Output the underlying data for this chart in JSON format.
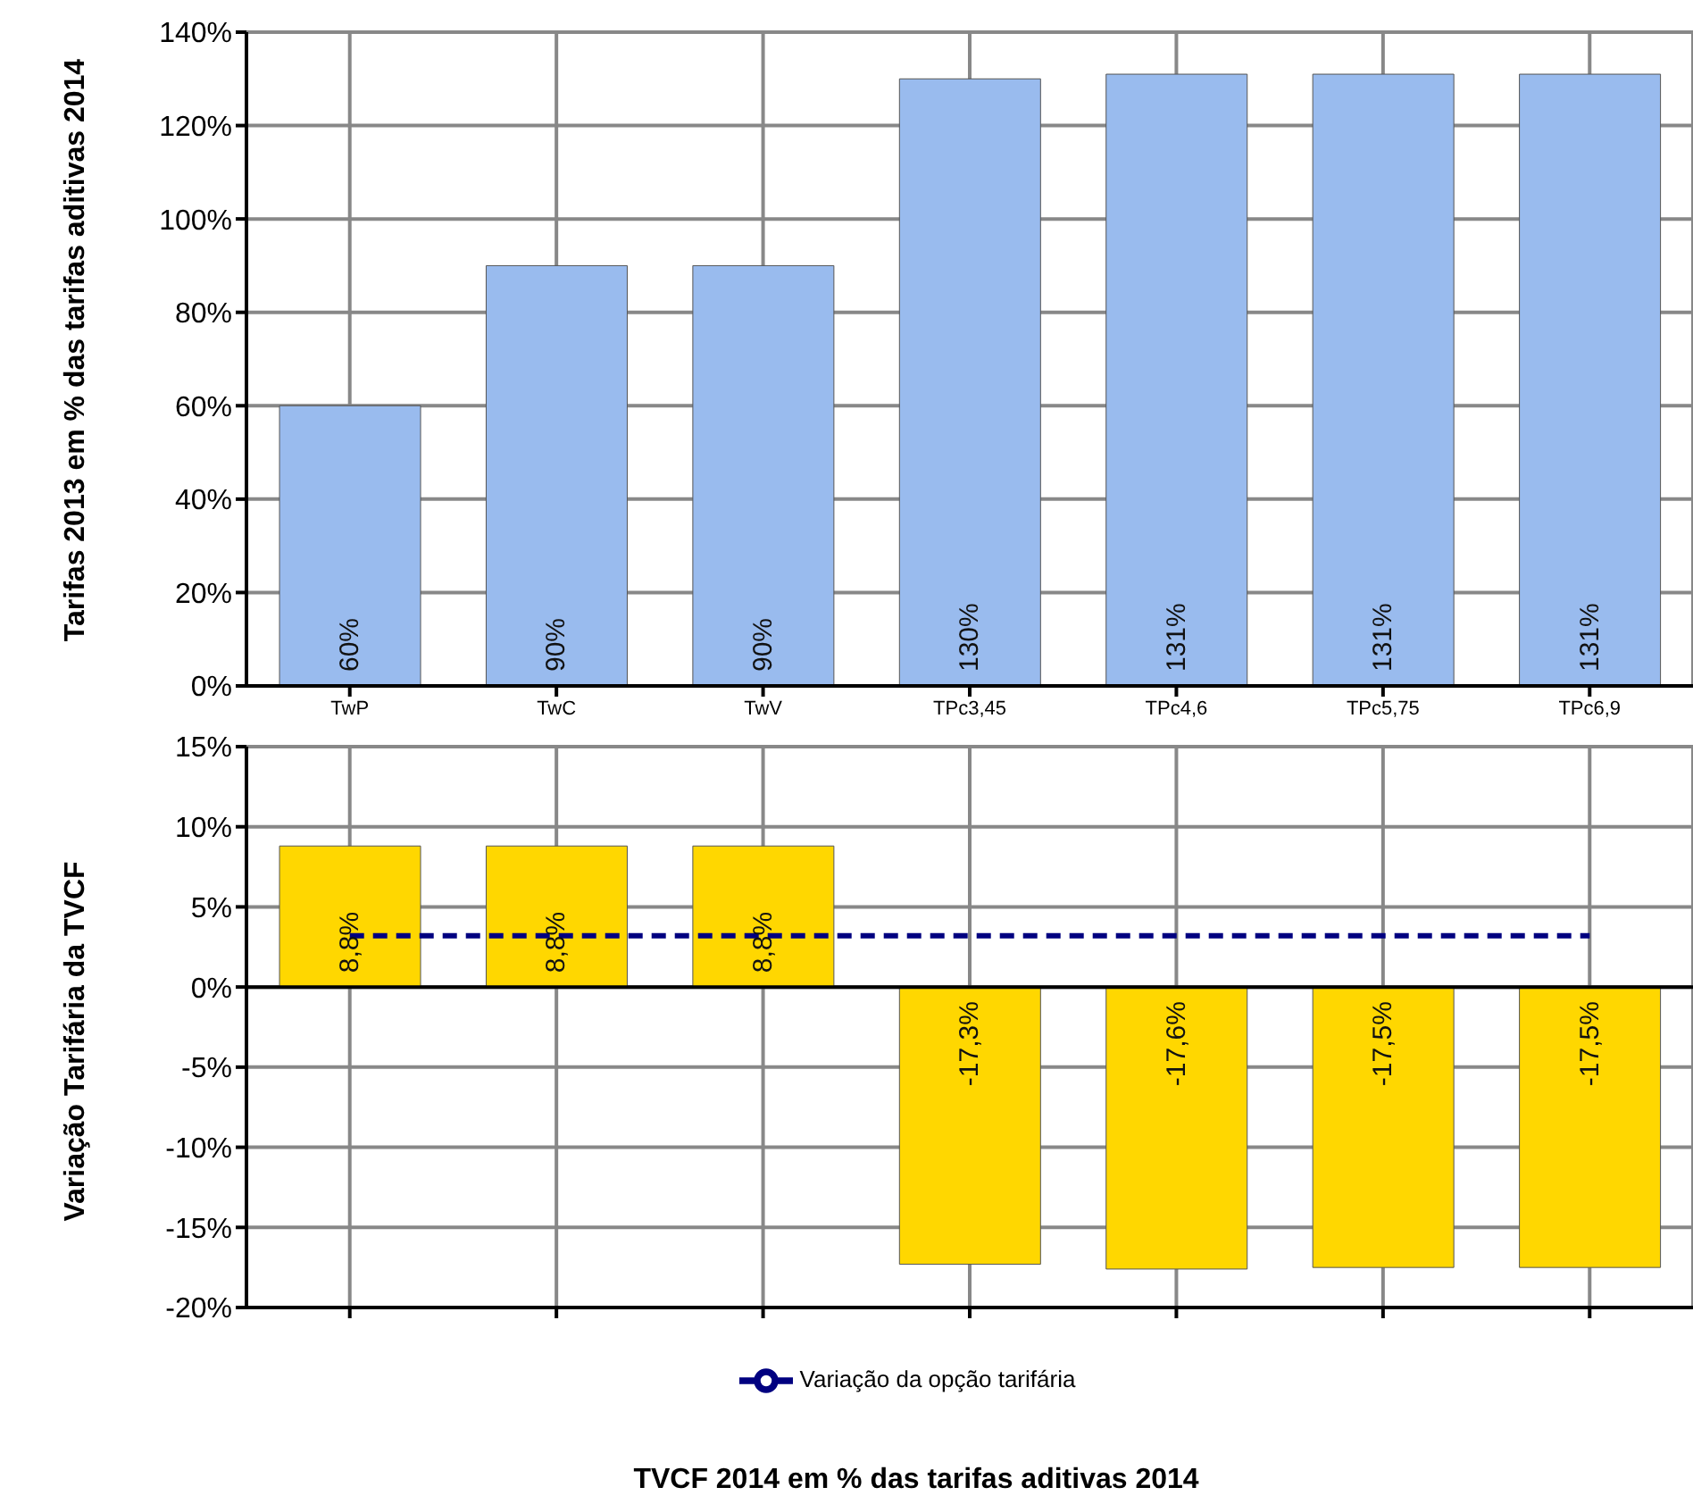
{
  "chart_data": [
    {
      "type": "bar",
      "ylabel": "Tarifas 2013 em % das tarifas aditivas 2014",
      "categories": [
        "TwP",
        "TwC",
        "TwV",
        "TPc3,45",
        "TPc4,6",
        "TPc5,75",
        "TPc6,9"
      ],
      "series": [
        {
          "color": "#99bbee",
          "values": [
            60,
            90,
            90,
            130,
            131,
            131,
            131
          ],
          "value_labels": [
            "60%",
            "90%",
            "90%",
            "130%",
            "131%",
            "131%",
            "131%"
          ]
        }
      ],
      "ylim": [
        0,
        140
      ],
      "yticks": [
        {
          "value": 0,
          "label": "0%"
        },
        {
          "value": 20,
          "label": "20%"
        },
        {
          "value": 40,
          "label": "40%"
        },
        {
          "value": 60,
          "label": "60%"
        },
        {
          "value": 80,
          "label": "80%"
        },
        {
          "value": 100,
          "label": "100%"
        },
        {
          "value": 120,
          "label": "120%"
        },
        {
          "value": 140,
          "label": "140%"
        }
      ],
      "grid": true,
      "legend": false
    },
    {
      "type": "bar",
      "ylabel": "Variação Tarifária da TVCF",
      "xlabel": "TVCF 2014 em % das tarifas aditivas 2014",
      "categories": [
        null,
        null,
        null,
        null,
        null,
        null,
        null
      ],
      "series": [
        {
          "color": "#ffd700",
          "values": [
            8.8,
            8.8,
            8.8,
            -17.3,
            -17.6,
            -17.5,
            -17.5
          ],
          "value_labels": [
            "8,8%",
            "8,8%",
            "8,8%",
            "-17,3%",
            "-17,6%",
            "-17,5%",
            "-17,5%"
          ]
        },
        {
          "type": "line",
          "name": "Variação da opção tarifária",
          "color": "#000080",
          "line_style": "dashed",
          "marker": "none",
          "values": [
            3.2,
            3.2,
            3.2,
            3.2,
            3.2,
            3.2,
            3.2
          ]
        }
      ],
      "ylim": [
        -20,
        15
      ],
      "yticks": [
        {
          "value": -20,
          "label": "-20%"
        },
        {
          "value": -15,
          "label": "-15%"
        },
        {
          "value": -10,
          "label": "-10%"
        },
        {
          "value": -5,
          "label": "-5%"
        },
        {
          "value": 0,
          "label": "0%"
        },
        {
          "value": 5,
          "label": "5%"
        },
        {
          "value": 10,
          "label": "10%"
        },
        {
          "value": 15,
          "label": "15%"
        }
      ],
      "grid": true,
      "legend": "bottom"
    }
  ]
}
